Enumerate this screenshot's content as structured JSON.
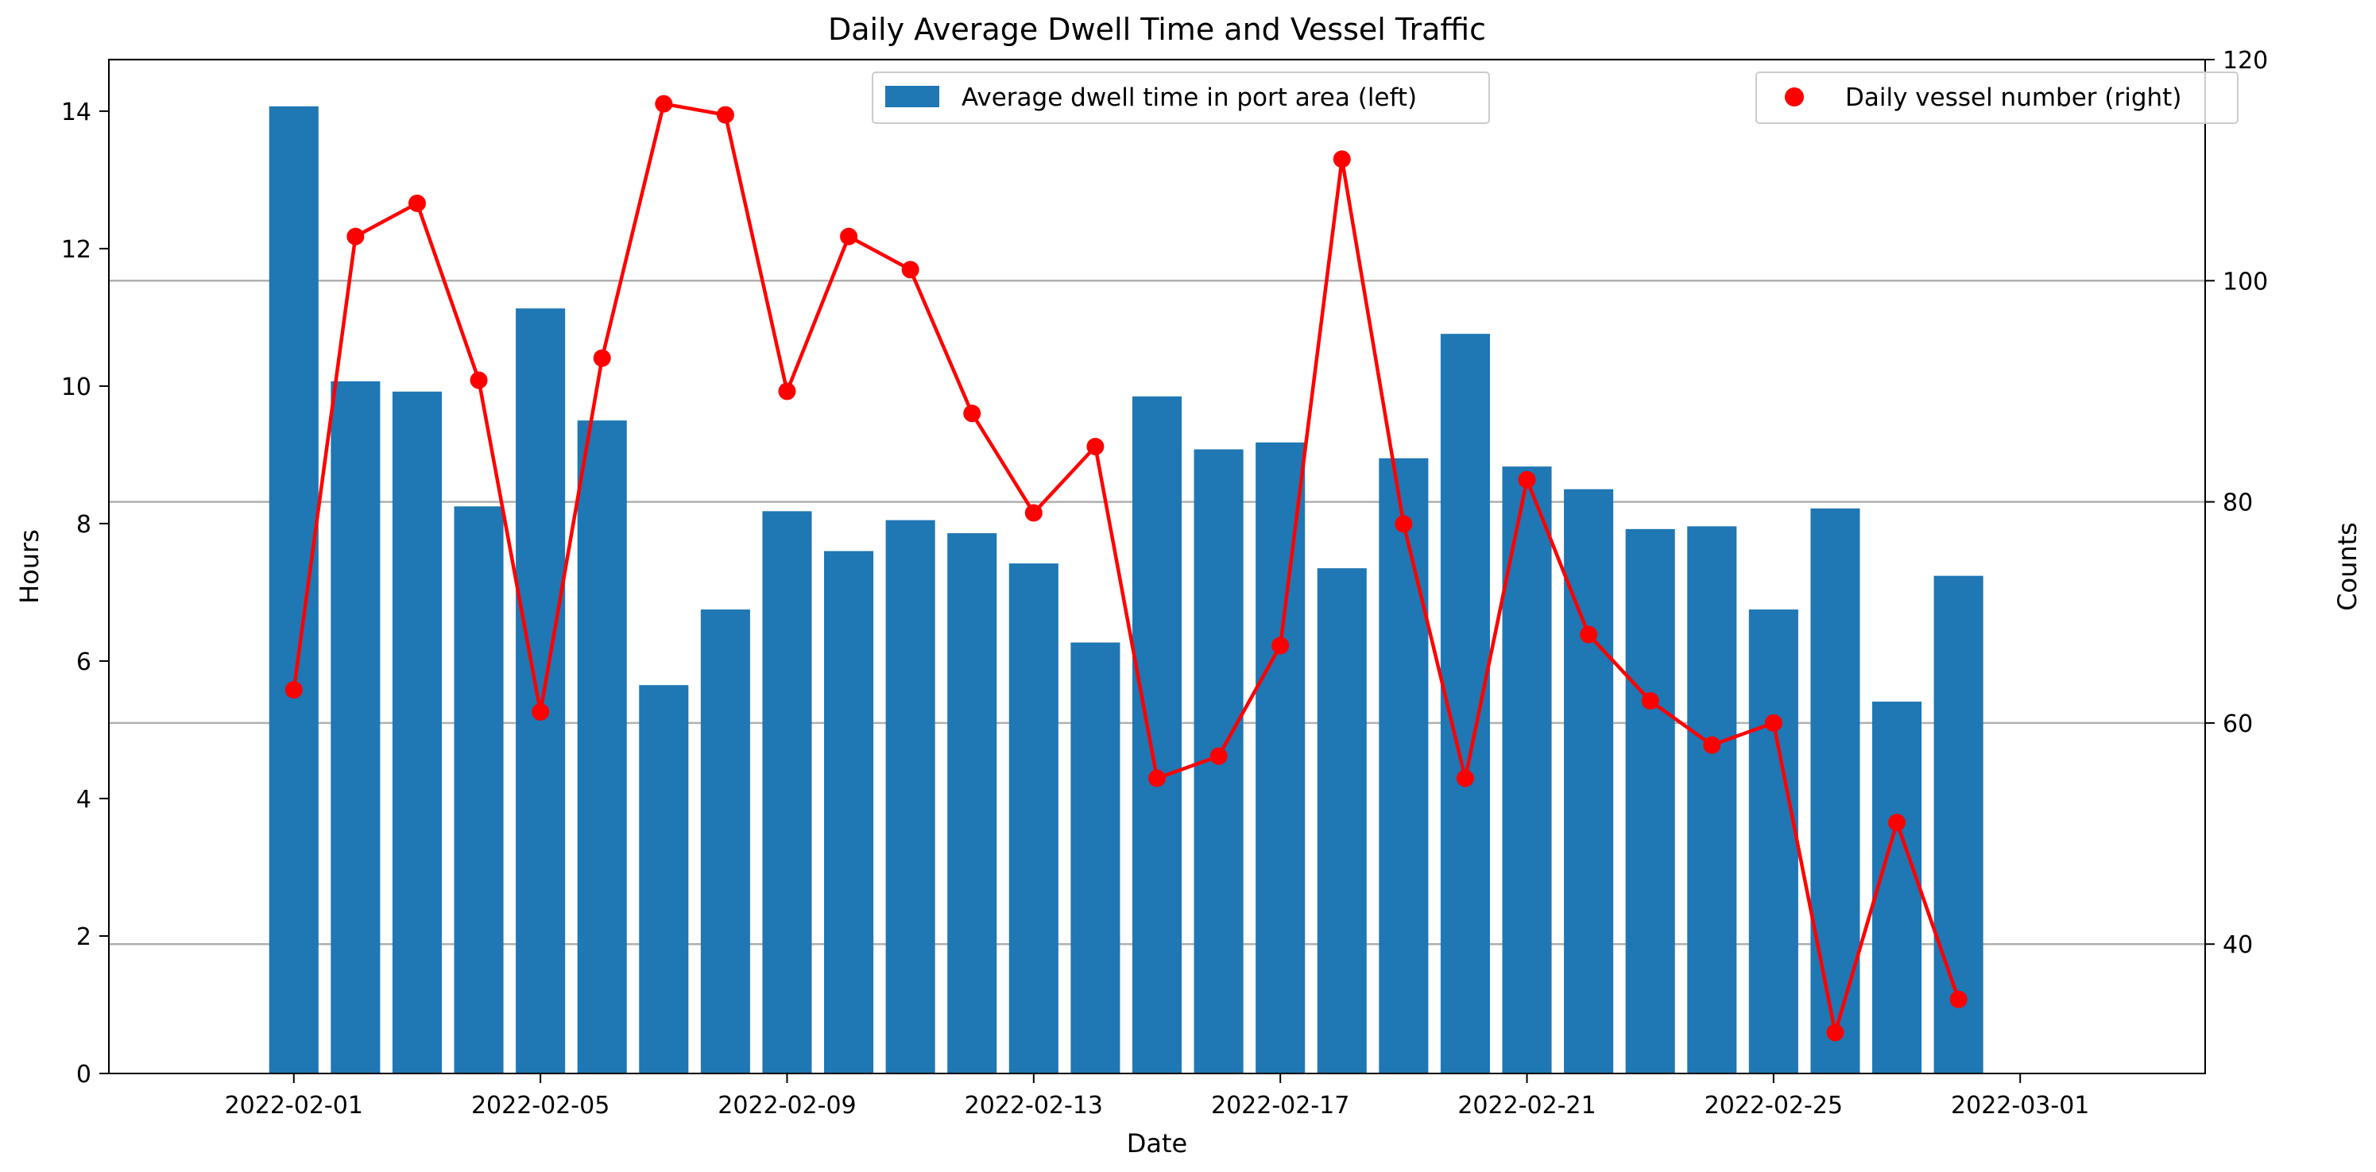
{
  "chart_data": {
    "type": "bar+line",
    "title": "Daily Average Dwell Time and Vessel Traffic",
    "xlabel": "Date",
    "ylabel_left": "Hours",
    "ylabel_right": "Counts",
    "x_dates": [
      "2022-02-01",
      "2022-02-02",
      "2022-02-03",
      "2022-02-04",
      "2022-02-05",
      "2022-02-06",
      "2022-02-07",
      "2022-02-08",
      "2022-02-09",
      "2022-02-10",
      "2022-02-11",
      "2022-02-12",
      "2022-02-13",
      "2022-02-14",
      "2022-02-15",
      "2022-02-16",
      "2022-02-17",
      "2022-02-18",
      "2022-02-19",
      "2022-02-20",
      "2022-02-21",
      "2022-02-22",
      "2022-02-23",
      "2022-02-24",
      "2022-02-25",
      "2022-02-26",
      "2022-02-27",
      "2022-02-28"
    ],
    "x_ticks": [
      "2022-02-01",
      "2022-02-05",
      "2022-02-09",
      "2022-02-13",
      "2022-02-17",
      "2022-02-21",
      "2022-02-25",
      "2022-03-01"
    ],
    "x_range": [
      "2022-01-29",
      "2022-03-04"
    ],
    "series": [
      {
        "name": "Average dwell time in port area (left)",
        "type": "bar",
        "axis": "left",
        "color": "#1f77b4",
        "values": [
          14.07,
          10.07,
          9.92,
          8.25,
          11.13,
          9.5,
          5.65,
          6.75,
          8.18,
          7.6,
          8.05,
          7.86,
          7.42,
          6.27,
          9.85,
          9.08,
          9.18,
          7.35,
          8.95,
          10.76,
          8.83,
          8.5,
          7.92,
          7.96,
          6.75,
          8.22,
          5.41,
          7.24
        ]
      },
      {
        "name": "Daily vessel number (right)",
        "type": "line",
        "axis": "right",
        "color": "#ff0000",
        "values": [
          63,
          104,
          107,
          91,
          61,
          93,
          116,
          115,
          90,
          104,
          101,
          88,
          79,
          85,
          55,
          57,
          67,
          111,
          78,
          55,
          82,
          68,
          62,
          58,
          60,
          32,
          51,
          35
        ]
      }
    ],
    "y_left": {
      "ticks": [
        0,
        2,
        4,
        6,
        8,
        10,
        12,
        14
      ],
      "lim": [
        0,
        14.75
      ]
    },
    "y_right": {
      "ticks": [
        40,
        60,
        80,
        100,
        120
      ],
      "lim": [
        28.3,
        120
      ]
    },
    "grid": "horizontal lines on right axis",
    "legend_left_placement": "upper center",
    "legend_right_placement": "upper right"
  }
}
